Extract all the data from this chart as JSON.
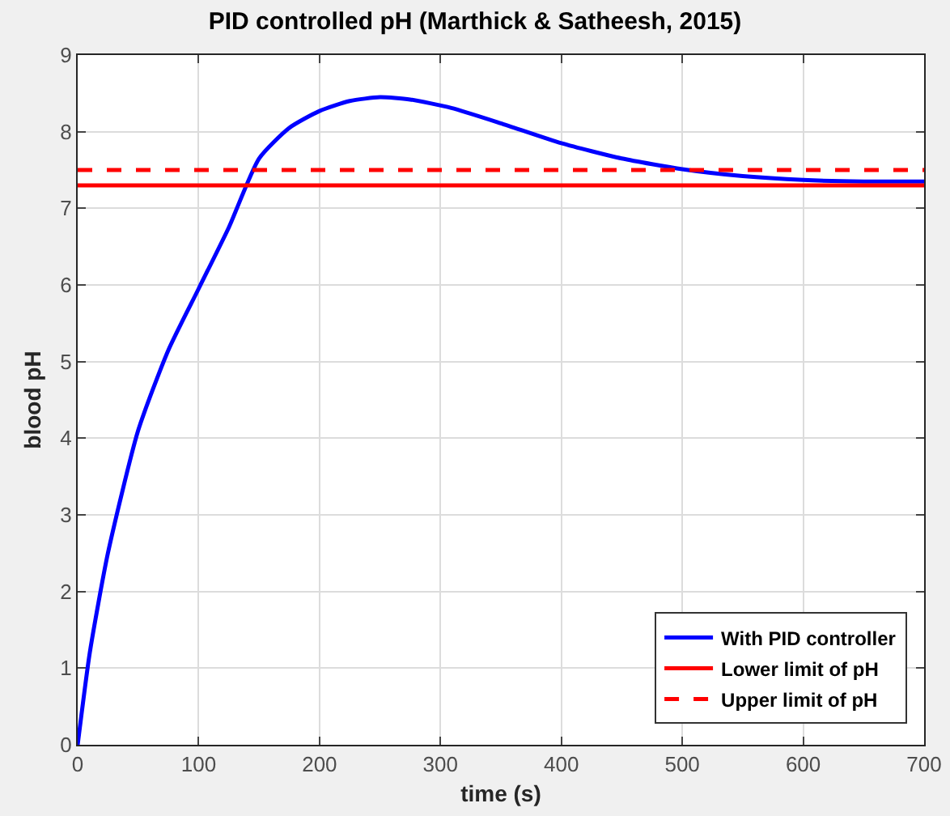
{
  "chart_data": {
    "type": "line",
    "title": "PID controlled pH (Marthick & Satheesh, 2015)",
    "xlabel": "time (s)",
    "ylabel": "blood pH",
    "xlim": [
      0,
      700
    ],
    "xticks": [
      0,
      100,
      200,
      300,
      400,
      500,
      600,
      700
    ],
    "ylim": [
      0,
      9
    ],
    "yticks": [
      0,
      1,
      2,
      3,
      4,
      5,
      6,
      7,
      8,
      9
    ],
    "grid": true,
    "legend": "bottom right",
    "marker": "none",
    "series": [
      {
        "name": "With PID controller",
        "color": "#0000ff",
        "line_style": "solid",
        "x": [
          0,
          10,
          25,
          50,
          75,
          100,
          125,
          150,
          175,
          200,
          225,
          250,
          275,
          309,
          350,
          400,
          450,
          500,
          550,
          600,
          650,
          700
        ],
        "values": [
          0,
          1.2,
          2.5,
          4.1,
          5.15,
          5.95,
          6.75,
          7.65,
          8.05,
          8.27,
          8.4,
          8.45,
          8.42,
          8.31,
          8.11,
          7.85,
          7.65,
          7.51,
          7.42,
          7.37,
          7.35,
          7.35
        ]
      },
      {
        "name": "Lower limit of pH",
        "color": "#ff0000",
        "line_style": "solid",
        "x": [
          0,
          700
        ],
        "values": [
          7.3,
          7.3
        ]
      },
      {
        "name": "Upper limit of pH",
        "color": "#ff0000",
        "line_style": "dashed",
        "x": [
          0,
          700
        ],
        "values": [
          7.5,
          7.5
        ]
      }
    ]
  }
}
